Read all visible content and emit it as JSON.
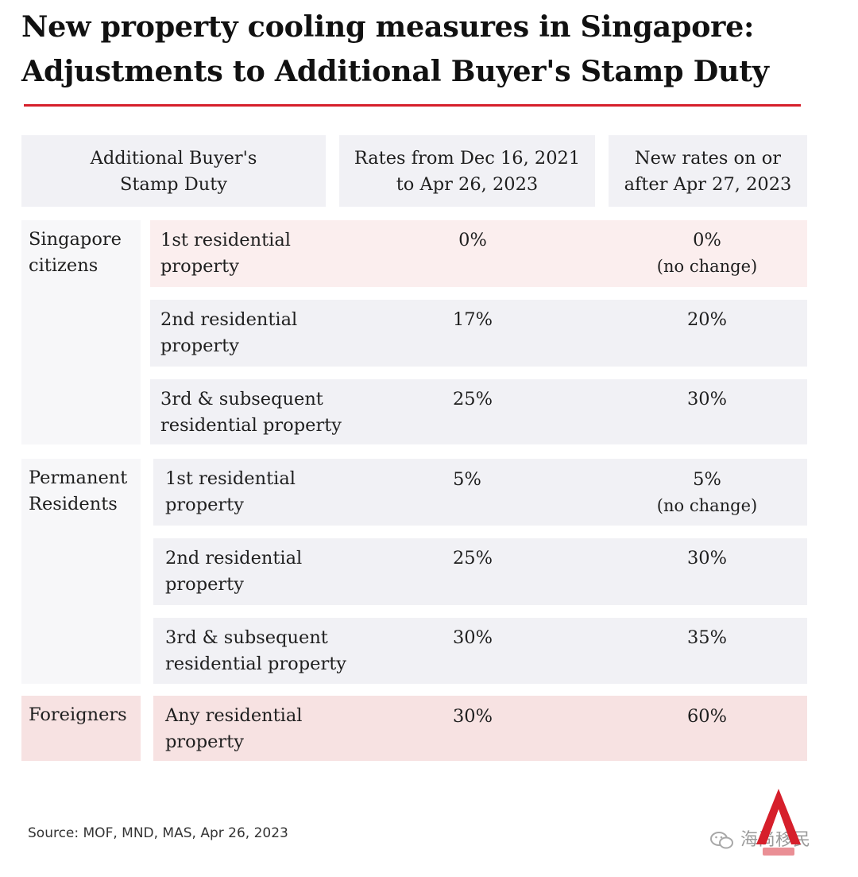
{
  "title_line1": "New property cooling measures in Singapore:",
  "title_line2": "Adjustments to Additional Buyer's Stamp Duty",
  "colors": {
    "accent": "#d61f2b",
    "header_bg": "#f1f1f5",
    "pink": "#fbeeee",
    "pink_dark": "#f7e2e2"
  },
  "chart_data": {
    "type": "table",
    "columns": [
      {
        "line1": "Additional Buyer's",
        "line2": "Stamp Duty"
      },
      {
        "line1": "Rates from Dec 16, 2021",
        "line2": "to Apr 26, 2023"
      },
      {
        "line1": "New rates on or",
        "line2": "after Apr 27, 2023"
      }
    ],
    "groups": [
      {
        "name_line1": "Singapore",
        "name_line2": "citizens",
        "rows": [
          {
            "label_line1": "1st residential",
            "label_line2": "property",
            "old": "0%",
            "new": "0%",
            "new_note": "(no change)"
          },
          {
            "label_line1": "2nd residential",
            "label_line2": "property",
            "old": "17%",
            "new": "20%"
          },
          {
            "label_line1": "3rd & subsequent",
            "label_line2": "residential property",
            "old": "25%",
            "new": "30%"
          }
        ]
      },
      {
        "name_line1": "Permanent",
        "name_line2": "Residents",
        "rows": [
          {
            "label_line1": "1st residential",
            "label_line2": "property",
            "old": "5%",
            "new": "5%",
            "new_note": "(no change)"
          },
          {
            "label_line1": "2nd residential",
            "label_line2": "property",
            "old": "25%",
            "new": "30%"
          },
          {
            "label_line1": "3rd & subsequent",
            "label_line2": "residential property",
            "old": "30%",
            "new": "35%"
          }
        ]
      },
      {
        "name_line1": "Foreigners",
        "rows": [
          {
            "label_line1": "Any residential",
            "label_line2": "property",
            "old": "30%",
            "new": "60%"
          }
        ]
      }
    ]
  },
  "source": "Source: MOF, MND, MAS, Apr 26, 2023",
  "watermark": "海尚移民",
  "logo_icon": "cna-logo-icon"
}
